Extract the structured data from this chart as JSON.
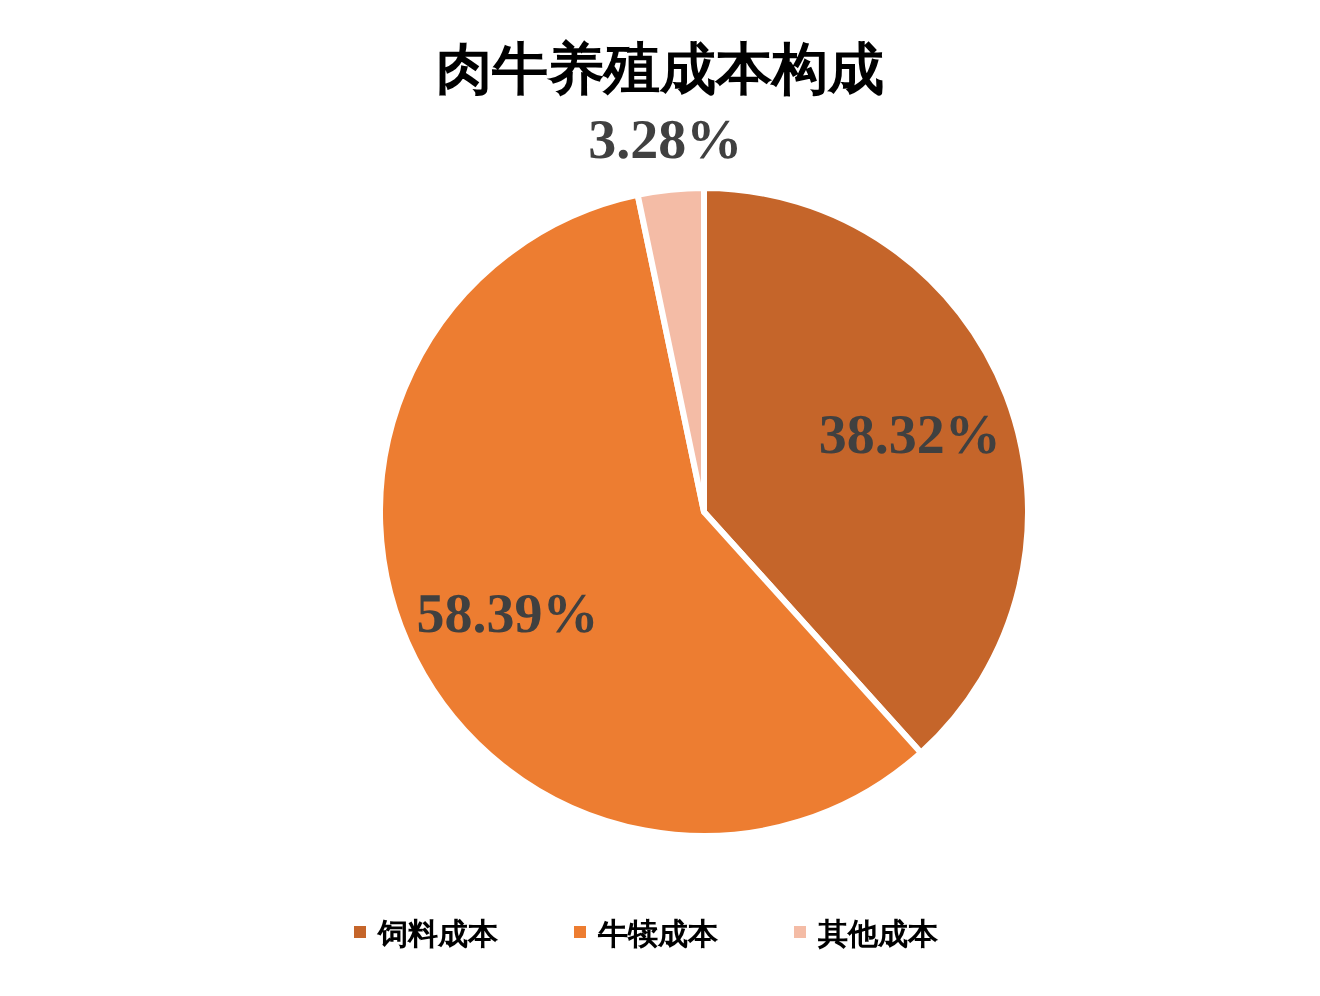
{
  "chart_data": {
    "type": "pie",
    "title": "肉牛养殖成本构成",
    "categories": [
      "饲料成本",
      "牛犊成本",
      "其他成本"
    ],
    "values": [
      38.32,
      58.39,
      3.28
    ],
    "colors": [
      "#c5652a",
      "#ed7d31",
      "#f4bca6"
    ],
    "value_labels": [
      "38.32%",
      "58.39%",
      "3.28%"
    ],
    "legend": "bottom"
  }
}
